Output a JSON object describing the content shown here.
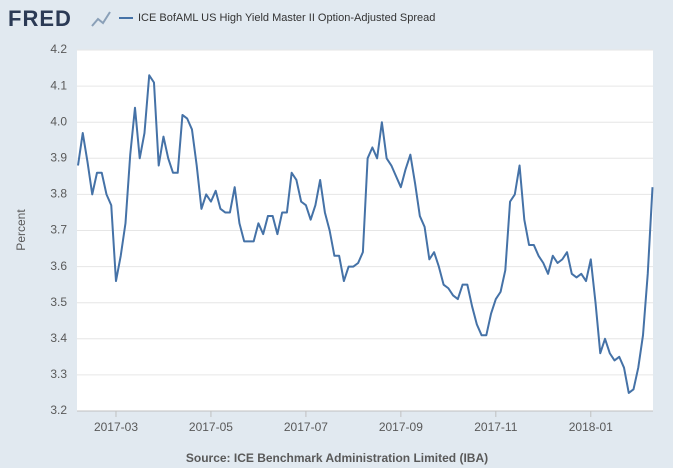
{
  "logo": "FRED",
  "chart_data": {
    "type": "line",
    "y_label": "Percent",
    "source": "Source: ICE Benchmark Administration Limited (IBA)",
    "categories": [
      null,
      null,
      null,
      null,
      null,
      null,
      null,
      null,
      "2017-03",
      null,
      null,
      null,
      null,
      null,
      null,
      null,
      null,
      null,
      null,
      null,
      null,
      null,
      null,
      null,
      null,
      null,
      null,
      null,
      "2017-05",
      null,
      null,
      null,
      null,
      null,
      null,
      null,
      null,
      null,
      null,
      null,
      null,
      null,
      null,
      null,
      null,
      null,
      null,
      null,
      "2017-07",
      null,
      null,
      null,
      null,
      null,
      null,
      null,
      null,
      null,
      null,
      null,
      null,
      null,
      null,
      null,
      null,
      null,
      null,
      null,
      "2017-09",
      null,
      null,
      null,
      null,
      null,
      null,
      null,
      null,
      null,
      null,
      null,
      null,
      null,
      null,
      null,
      null,
      null,
      null,
      null,
      "2017-11",
      null,
      null,
      null,
      null,
      null,
      null,
      null,
      null,
      null,
      null,
      null,
      null,
      null,
      null,
      null,
      null,
      null,
      null,
      null,
      "2018-01",
      null,
      null,
      null,
      null,
      null,
      null,
      null,
      null,
      null,
      null,
      null,
      null,
      null
    ],
    "series": [
      {
        "name": "ICE BofAML US High Yield Master II Option-Adjusted Spread",
        "color": "#4572a7",
        "values": [
          3.88,
          3.97,
          3.89,
          3.8,
          3.86,
          3.86,
          3.8,
          3.77,
          3.56,
          3.63,
          3.72,
          3.91,
          4.04,
          3.9,
          3.97,
          4.13,
          4.11,
          3.88,
          3.96,
          3.9,
          3.86,
          3.86,
          4.02,
          4.01,
          3.98,
          3.88,
          3.76,
          3.8,
          3.78,
          3.81,
          3.76,
          3.75,
          3.75,
          3.82,
          3.72,
          3.67,
          3.67,
          3.67,
          3.72,
          3.69,
          3.74,
          3.74,
          3.69,
          3.75,
          3.75,
          3.86,
          3.84,
          3.78,
          3.77,
          3.73,
          3.77,
          3.84,
          3.75,
          3.7,
          3.63,
          3.63,
          3.56,
          3.6,
          3.6,
          3.61,
          3.64,
          3.9,
          3.93,
          3.9,
          4.0,
          3.9,
          3.88,
          3.85,
          3.82,
          3.87,
          3.91,
          3.83,
          3.74,
          3.71,
          3.62,
          3.64,
          3.6,
          3.55,
          3.54,
          3.52,
          3.51,
          3.55,
          3.55,
          3.49,
          3.44,
          3.41,
          3.41,
          3.47,
          3.51,
          3.53,
          3.59,
          3.78,
          3.8,
          3.88,
          3.73,
          3.66,
          3.66,
          3.63,
          3.61,
          3.58,
          3.63,
          3.61,
          3.62,
          3.64,
          3.58,
          3.57,
          3.58,
          3.56,
          3.62,
          3.5,
          3.36,
          3.4,
          3.36,
          3.34,
          3.35,
          3.32,
          3.25,
          3.26,
          3.32,
          3.41,
          3.58,
          3.82
        ]
      }
    ],
    "ylim": [
      3.2,
      4.2
    ],
    "yticks": [
      3.2,
      3.3,
      3.4,
      3.5,
      3.6,
      3.7,
      3.8,
      3.9,
      {
        "value": 4,
        "label": "4.0"
      },
      4.1,
      4.2
    ],
    "grid": true
  }
}
